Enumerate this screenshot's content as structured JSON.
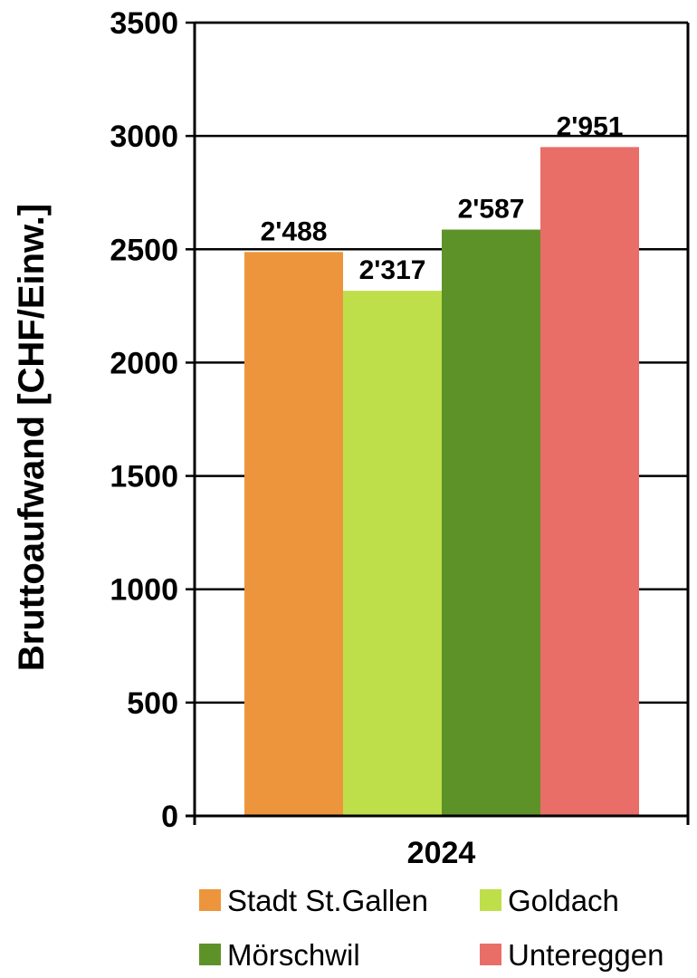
{
  "chart_data": {
    "type": "bar",
    "categories": [
      "2024"
    ],
    "series": [
      {
        "name": "Stadt St.Gallen",
        "values": [
          2488
        ],
        "label": "2'488",
        "color": "#ed953c"
      },
      {
        "name": "Goldach",
        "values": [
          2317
        ],
        "label": "2'317",
        "color": "#bedf4a"
      },
      {
        "name": "Mörschwil",
        "values": [
          2587
        ],
        "label": "2'587",
        "color": "#5d9229"
      },
      {
        "name": "Untereggen",
        "values": [
          2951
        ],
        "label": "2'951",
        "color": "#e96e68"
      }
    ],
    "ylabel": "Bruttoaufwand [CHF/Einw.]",
    "xlabel": "",
    "ylim": [
      0,
      3500
    ],
    "yticks": [
      "0",
      "500",
      "1000",
      "1500",
      "2000",
      "2500",
      "3000",
      "3500"
    ],
    "grid": true,
    "legend": "bottom"
  }
}
